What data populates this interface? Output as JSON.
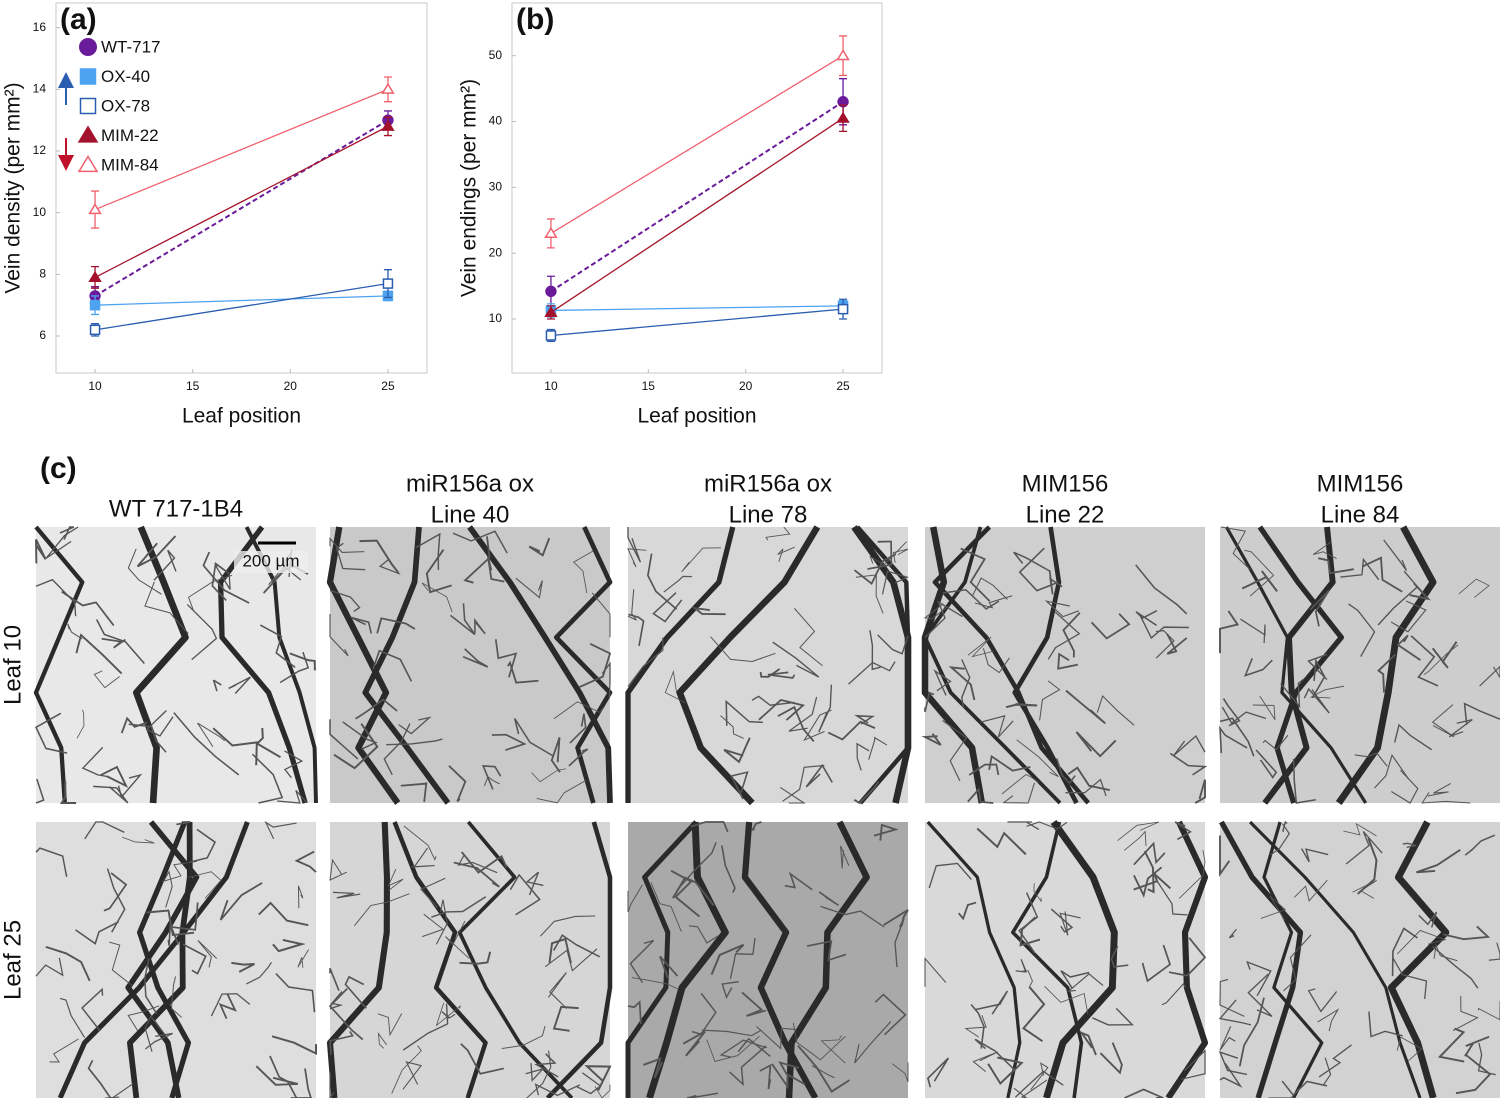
{
  "chart_data": [
    {
      "type": "line",
      "label": "(a)",
      "x_label": "Leaf position",
      "y_label": "Vein density (per mm²)",
      "x": [
        10,
        25
      ],
      "xlim": [
        8,
        27
      ],
      "xticks": [
        10,
        15,
        20,
        25
      ],
      "ylim": [
        4.8,
        16.8
      ],
      "yticks": [
        6,
        8,
        10,
        12,
        14,
        16
      ],
      "grid": false,
      "legend": "upper left",
      "series": [
        {
          "name": "WT-717",
          "color": "#6a1b9a",
          "marker": "circle",
          "filled": true,
          "dashed": true,
          "values": [
            7.3,
            13.0
          ],
          "errors": [
            0.3,
            0.3
          ]
        },
        {
          "name": "OX-40",
          "color": "#4da3f0",
          "marker": "square",
          "filled": true,
          "dashed": false,
          "values": [
            7.0,
            7.3
          ],
          "errors": [
            0.3,
            0.15
          ]
        },
        {
          "name": "OX-78",
          "color": "#2a5db0",
          "marker": "square",
          "filled": false,
          "dashed": false,
          "values": [
            6.2,
            7.7
          ],
          "errors": [
            0.2,
            0.45
          ]
        },
        {
          "name": "MIM-22",
          "color": "#a3122a",
          "marker": "triangle",
          "filled": true,
          "dashed": false,
          "values": [
            7.9,
            12.8
          ],
          "errors": [
            0.35,
            0.3
          ]
        },
        {
          "name": "MIM-84",
          "color": "#f0606e",
          "marker": "triangle",
          "filled": false,
          "dashed": false,
          "values": [
            10.1,
            14.0
          ],
          "errors": [
            0.6,
            0.4
          ]
        }
      ]
    },
    {
      "type": "line",
      "label": "(b)",
      "x_label": "Leaf position",
      "y_label": "Vein endings (per mm²)",
      "x": [
        10,
        25
      ],
      "xlim": [
        8,
        27
      ],
      "xticks": [
        10,
        15,
        20,
        25
      ],
      "ylim": [
        1.8,
        58
      ],
      "yticks": [
        10,
        20,
        30,
        40,
        50
      ],
      "grid": false,
      "series": [
        {
          "color": "#6a1b9a",
          "marker": "circle",
          "filled": true,
          "dashed": true,
          "values": [
            14.2,
            43.0
          ],
          "errors": [
            2.3,
            3.5
          ]
        },
        {
          "color": "#4da3f0",
          "marker": "square",
          "filled": true,
          "dashed": false,
          "values": [
            11.3,
            12.0
          ],
          "errors": [
            1.0,
            0.8
          ]
        },
        {
          "color": "#2a5db0",
          "marker": "square",
          "filled": false,
          "dashed": false,
          "values": [
            7.5,
            11.5
          ],
          "errors": [
            0.9,
            1.5
          ]
        },
        {
          "color": "#a3122a",
          "marker": "triangle",
          "filled": true,
          "dashed": false,
          "values": [
            11.0,
            40.5
          ],
          "errors": [
            1.0,
            2.0
          ]
        },
        {
          "color": "#f0606e",
          "marker": "triangle",
          "filled": false,
          "dashed": false,
          "values": [
            23.0,
            50.0
          ],
          "errors": [
            2.2,
            3.0
          ]
        }
      ]
    }
  ],
  "panel_c": {
    "label": "(c)",
    "columns": [
      [
        "WT 717-1B4"
      ],
      [
        "miR156a ox",
        "Line 40"
      ],
      [
        "miR156a ox",
        "Line 78"
      ],
      [
        "MIM156",
        "Line 22"
      ],
      [
        "MIM156",
        "Line 84"
      ]
    ],
    "rows": [
      "Leaf 10",
      "Leaf 25"
    ],
    "scale_bar": "200 µm"
  }
}
